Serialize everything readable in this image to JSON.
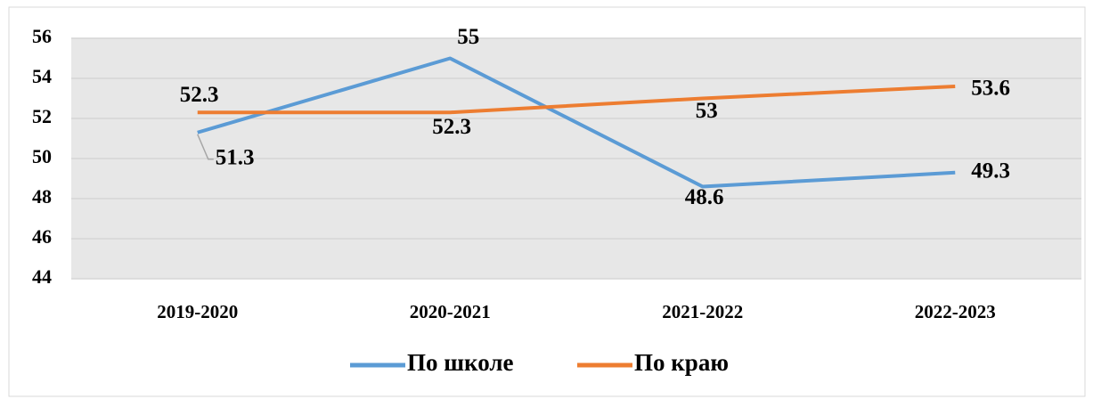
{
  "chart_data": {
    "type": "line",
    "categories": [
      "2019-2020",
      "2020-2021",
      "2021-2022",
      "2022-2023"
    ],
    "series": [
      {
        "name": "По школе",
        "color": "#5b9bd5",
        "values": [
          51.3,
          55,
          48.6,
          49.3
        ]
      },
      {
        "name": "По краю",
        "color": "#ed7d31",
        "values": [
          52.3,
          52.3,
          53,
          53.6
        ]
      }
    ],
    "ylim": [
      44,
      56
    ],
    "yticks": [
      44,
      46,
      48,
      50,
      52,
      54,
      56
    ],
    "grid": true,
    "legend": "bottom"
  }
}
